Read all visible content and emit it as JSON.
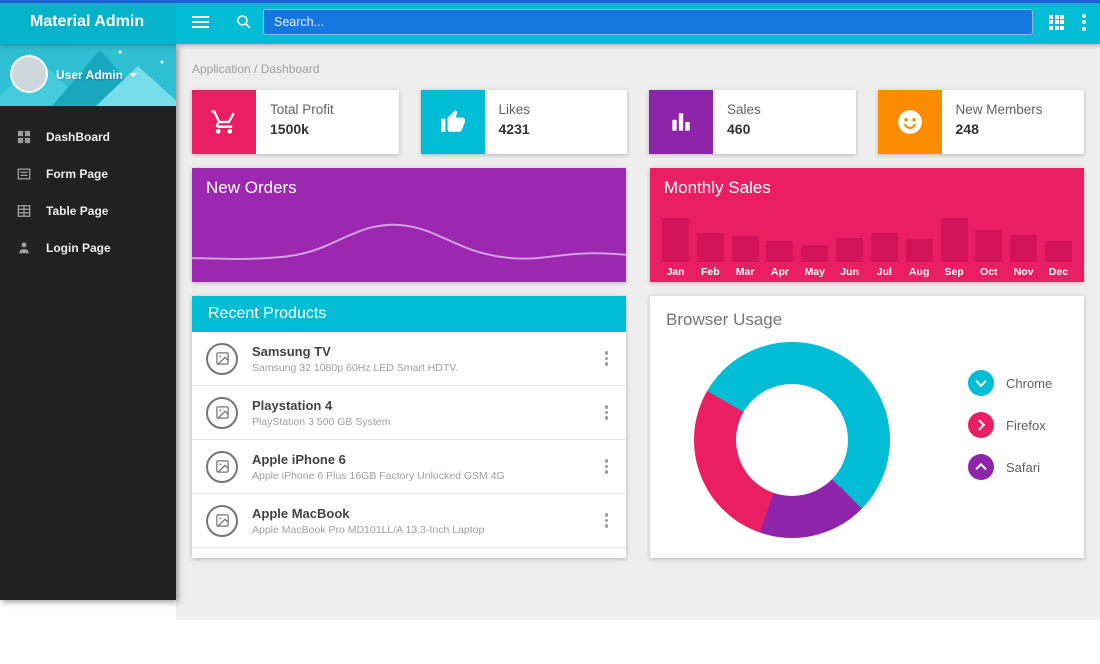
{
  "topbar": {
    "brand": "Material Admin",
    "search_placeholder": "Search...",
    "colors": {
      "bar": "#00bcd4",
      "accent_strip": "#1565d5",
      "search_bg": "#1478e1"
    }
  },
  "sidebar": {
    "user_name": "User Admin",
    "items": [
      {
        "label": "DashBoard",
        "icon": "dashboard-icon"
      },
      {
        "label": "Form Page",
        "icon": "form-page-icon"
      },
      {
        "label": "Table Page",
        "icon": "table-page-icon"
      },
      {
        "label": "Login Page",
        "icon": "login-page-icon"
      }
    ]
  },
  "breadcrumb": "Application / Dashboard",
  "stats": [
    {
      "label": "Total Profit",
      "value": "1500k",
      "color": "#e91e63",
      "icon": "shopping-cart-icon"
    },
    {
      "label": "Likes",
      "value": "4231",
      "color": "#00bcd4",
      "icon": "thumb-up-icon"
    },
    {
      "label": "Sales",
      "value": "460",
      "color": "#8e24aa",
      "icon": "bar-chart-icon"
    },
    {
      "label": "New Members",
      "value": "248",
      "color": "#fb8c00",
      "icon": "android-face-icon"
    }
  ],
  "chart_data": [
    {
      "id": "new_orders",
      "type": "line",
      "title": "New Orders",
      "bg": "#9c27b0",
      "line_color": "#d2a0e2",
      "x": [
        0,
        1,
        2,
        3,
        4,
        5,
        6,
        7,
        8,
        9,
        10,
        11,
        12,
        13,
        14,
        15,
        16,
        17
      ],
      "values": [
        32,
        31,
        30,
        32,
        36,
        48,
        70,
        88,
        93,
        85,
        65,
        45,
        34,
        30,
        34,
        40,
        41,
        38
      ],
      "ylim": [
        0,
        100
      ],
      "grid": false,
      "legend_position": "none"
    },
    {
      "id": "monthly_sales",
      "type": "bar",
      "title": "Monthly Sales",
      "bg": "#e91e63",
      "bar_color": "#d31357",
      "categories": [
        "Jan",
        "Feb",
        "Mar",
        "Apr",
        "May",
        "Jun",
        "Jul",
        "Aug",
        "Sep",
        "Oct",
        "Nov",
        "Dec"
      ],
      "values": [
        95,
        64,
        57,
        46,
        38,
        53,
        64,
        51,
        95,
        70,
        59,
        46
      ],
      "ylim": [
        0,
        100
      ],
      "grid": false,
      "legend_position": "none"
    },
    {
      "id": "browser_usage",
      "type": "pie",
      "title": "Browser Usage",
      "start_angle_deg": 300,
      "slices": [
        {
          "label": "Chrome",
          "value": 54,
          "color": "#00bcd4"
        },
        {
          "label": "Safari",
          "value": 18,
          "color": "#8e24aa"
        },
        {
          "label": "Firefox",
          "value": 28,
          "color": "#e91e63"
        }
      ],
      "legend_position": "right",
      "legend": [
        {
          "label": "Chrome",
          "color": "#00bcd4",
          "chevron": "down"
        },
        {
          "label": "Firefox",
          "color": "#e91e63",
          "chevron": "right"
        },
        {
          "label": "Safari",
          "color": "#8e24aa",
          "chevron": "up"
        }
      ]
    }
  ],
  "recent_products": {
    "title": "Recent Products",
    "items": [
      {
        "title": "Samsung TV",
        "subtitle": "Samsung 32 1080p 60Hz LED Smart HDTV."
      },
      {
        "title": "Playstation 4",
        "subtitle": "PlayStation 3 500 GB System"
      },
      {
        "title": "Apple iPhone 6",
        "subtitle": "Apple iPhone 6 Plus 16GB Factory Unlocked GSM 4G"
      },
      {
        "title": "Apple MacBook",
        "subtitle": "Apple MacBook Pro MD101LL/A 13.3-Inch Laptop"
      }
    ]
  }
}
